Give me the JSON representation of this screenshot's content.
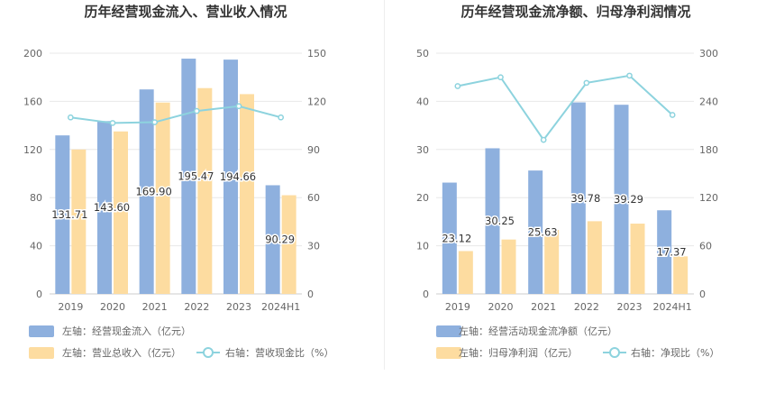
{
  "colors": {
    "bar_primary": "#8eb0de",
    "bar_secondary": "#fddca0",
    "line": "#8dd3de",
    "grid": "#e8e8e8",
    "axis_text": "#666666",
    "title_text": "#333333"
  },
  "chart_data": [
    {
      "type": "bar",
      "title": "历年经营现金流入、营业收入情况",
      "categories": [
        "2019",
        "2020",
        "2021",
        "2022",
        "2023",
        "2024H1"
      ],
      "y_left_ticks": [
        "0",
        "40",
        "80",
        "120",
        "160",
        "200"
      ],
      "y_left_range": [
        0,
        200
      ],
      "y_right_ticks": [
        "0",
        "30",
        "60",
        "90",
        "120",
        "150"
      ],
      "y_right_range": [
        0,
        150
      ],
      "grid": true,
      "legend_position": "bottom",
      "series": [
        {
          "name": "左轴：经营现金流入（亿元）",
          "kind": "bar",
          "axis": "left",
          "values": [
            131.71,
            143.6,
            169.9,
            195.47,
            194.66,
            90.29
          ],
          "labels": [
            "131.71",
            "143.60",
            "169.90",
            "195.47",
            "194.66",
            "90.29"
          ]
        },
        {
          "name": "左轴：营业总收入（亿元）",
          "kind": "bar",
          "axis": "left",
          "values": [
            120,
            135,
            159,
            171,
            166,
            82
          ]
        },
        {
          "name": "右轴：营收现金比（%）",
          "kind": "line",
          "axis": "right",
          "values": [
            110,
            106.5,
            107,
            114,
            117,
            110
          ]
        }
      ]
    },
    {
      "type": "bar",
      "title": "历年经营现金流净额、归母净利润情况",
      "categories": [
        "2019",
        "2020",
        "2021",
        "2022",
        "2023",
        "2024H1"
      ],
      "y_left_ticks": [
        "0",
        "10",
        "20",
        "30",
        "40",
        "50"
      ],
      "y_left_range": [
        0,
        50
      ],
      "y_right_ticks": [
        "0",
        "60",
        "120",
        "180",
        "240",
        "300"
      ],
      "y_right_range": [
        0,
        300
      ],
      "grid": true,
      "legend_position": "bottom",
      "series": [
        {
          "name": "左轴：经营活动现金流净额（亿元）",
          "kind": "bar",
          "axis": "left",
          "values": [
            23.12,
            30.25,
            25.63,
            39.78,
            39.29,
            17.37
          ],
          "labels": [
            "23.12",
            "30.25",
            "25.63",
            "39.78",
            "39.29",
            "17.37"
          ]
        },
        {
          "name": "左轴：归母净利润（亿元）",
          "kind": "bar",
          "axis": "left",
          "values": [
            8.9,
            11.3,
            13.3,
            15.1,
            14.6,
            7.8
          ]
        },
        {
          "name": "右轴：净现比（%）",
          "kind": "line",
          "axis": "right",
          "values": [
            259,
            270,
            192,
            263,
            272,
            223
          ]
        }
      ]
    }
  ]
}
